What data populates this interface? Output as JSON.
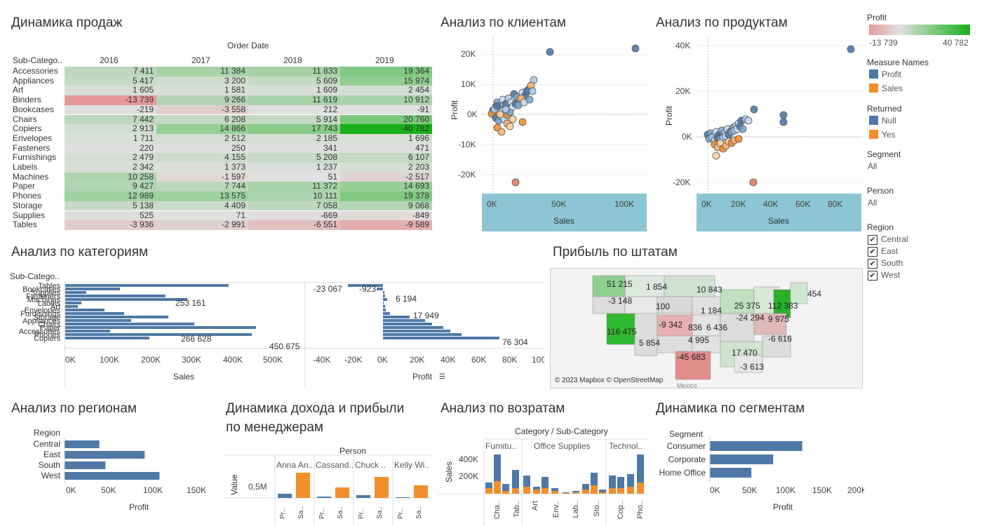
{
  "titles": {
    "sales_dynamics": "Динамика продаж",
    "clients": "Анализ по клиентам",
    "products": "Анализ по продуктам",
    "categories": "Анализ по категориям",
    "states": "Прибыль по штатам",
    "regions": "Анализ по регионам",
    "managers_l1": "Динамика дохода и прибыли",
    "managers_l2": "по менеджерам",
    "returns": "Анализ по возратам",
    "segments": "Динамика по сегментам"
  },
  "heatmap": {
    "order_date_label": "Order Date",
    "row_header": "Sub-Catego..",
    "years": [
      "2016",
      "2017",
      "2018",
      "2019"
    ],
    "rows": [
      {
        "label": "Accessories",
        "v": [
          "7 411",
          "11 384",
          "11 833",
          "19 364"
        ],
        "n": [
          7411,
          11384,
          11833,
          19364
        ]
      },
      {
        "label": "Appliances",
        "v": [
          "5 417",
          "3 200",
          "5 609",
          "15 974"
        ],
        "n": [
          5417,
          3200,
          5609,
          15974
        ]
      },
      {
        "label": "Art",
        "v": [
          "1 605",
          "1 581",
          "1 609",
          "2 454"
        ],
        "n": [
          1605,
          1581,
          1609,
          2454
        ]
      },
      {
        "label": "Binders",
        "v": [
          "-13 739",
          "9 266",
          "11 619",
          "10 912"
        ],
        "n": [
          -13739,
          9266,
          11619,
          10912
        ]
      },
      {
        "label": "Bookcases",
        "v": [
          "-219",
          "-3 558",
          "212",
          "-91"
        ],
        "n": [
          -219,
          -3558,
          212,
          -91
        ]
      },
      {
        "label": "Chairs",
        "v": [
          "7 442",
          "6 208",
          "5 914",
          "20 760"
        ],
        "n": [
          7442,
          6208,
          5914,
          20760
        ]
      },
      {
        "label": "Copiers",
        "v": [
          "2 913",
          "14 866",
          "17 743",
          "40 782"
        ],
        "n": [
          2913,
          14866,
          17743,
          40782
        ]
      },
      {
        "label": "Envelopes",
        "v": [
          "1 711",
          "2 512",
          "2 185",
          "1 696"
        ],
        "n": [
          1711,
          2512,
          2185,
          1696
        ]
      },
      {
        "label": "Fasteners",
        "v": [
          "220",
          "250",
          "341",
          "471"
        ],
        "n": [
          220,
          250,
          341,
          471
        ]
      },
      {
        "label": "Furnishings",
        "v": [
          "2 479",
          "4 155",
          "5 208",
          "6 107"
        ],
        "n": [
          2479,
          4155,
          5208,
          6107
        ]
      },
      {
        "label": "Labels",
        "v": [
          "2 342",
          "1 373",
          "1 237",
          "2 203"
        ],
        "n": [
          2342,
          1373,
          1237,
          2203
        ]
      },
      {
        "label": "Machines",
        "v": [
          "10 258",
          "-1 597",
          "51",
          "-2 517"
        ],
        "n": [
          10258,
          -1597,
          51,
          -2517
        ]
      },
      {
        "label": "Paper",
        "v": [
          "9 427",
          "7 744",
          "11 372",
          "14 693"
        ],
        "n": [
          9427,
          7744,
          11372,
          14693
        ]
      },
      {
        "label": "Phones",
        "v": [
          "12 989",
          "13 575",
          "10 111",
          "19 378"
        ],
        "n": [
          12989,
          13575,
          10111,
          19378
        ]
      },
      {
        "label": "Storage",
        "v": [
          "5 138",
          "4 409",
          "7 058",
          "9 068"
        ],
        "n": [
          5138,
          4409,
          7058,
          9068
        ]
      },
      {
        "label": "Supplies",
        "v": [
          "525",
          "71",
          "-669",
          "-849"
        ],
        "n": [
          525,
          71,
          -669,
          -849
        ]
      },
      {
        "label": "Tables",
        "v": [
          "-3 936",
          "-2 991",
          "-6 551",
          "-9 589"
        ],
        "n": [
          -3936,
          -2991,
          -6551,
          -9589
        ]
      }
    ]
  },
  "clients_chart": {
    "ylabel": "Profit",
    "xlabel": "Sales",
    "yticks": [
      "20K",
      "10K",
      "0K",
      "-10K",
      "-20K"
    ],
    "xticks": [
      "0K",
      "50K",
      "100K"
    ]
  },
  "products_chart": {
    "ylabel": "Profit",
    "xlabel": "Sales",
    "yticks": [
      "40K",
      "20K",
      "0K",
      "-20K"
    ],
    "xticks": [
      "0K",
      "20K",
      "40K",
      "60K",
      "80K"
    ]
  },
  "legend": {
    "profit_title": "Profit",
    "profit_min": "-13 739",
    "profit_max": "40 782",
    "measure_title": "Measure Names",
    "measure_items": [
      "Profit",
      "Sales"
    ],
    "returned_title": "Returned",
    "returned_items": [
      "Null",
      "Yes"
    ],
    "segment_title": "Segment",
    "segment_value": "All",
    "person_title": "Person",
    "person_value": "All",
    "region_title": "Region",
    "region_items": [
      "Central",
      "East",
      "South",
      "West"
    ],
    "colors": {
      "blue": "#4e79a7",
      "orange": "#f28e2b",
      "neg": "#e6a0a0",
      "pos": "#1fae1f"
    }
  },
  "categories_chart": {
    "row_header": "Sub-Catego..",
    "labels": [
      "Tables",
      "Bookcases",
      "Supplies",
      "Fasteners",
      "Machines",
      "Labels",
      "Art",
      "Envelopes",
      "Furnishings",
      "Storage",
      "Appliances",
      "Chairs",
      "Paper",
      "Accessories",
      "Phones",
      "Copiers"
    ],
    "sales_labels": [
      "253 161",
      "266 628",
      "450 675"
    ],
    "profit_labels": [
      "-23 067",
      "-923",
      "6 194",
      "17 949",
      "76 304"
    ],
    "sales_ticks": [
      "0K",
      "100K",
      "200K",
      "300K",
      "400K",
      "500K"
    ],
    "profit_ticks": [
      "-40K",
      "-20K",
      "0K",
      "20K",
      "40K",
      "60K",
      "80K",
      "100K"
    ],
    "sales_axis": "Sales",
    "profit_axis": "Profit"
  },
  "map": {
    "credit": "© 2023 Mapbox © OpenStreetMap",
    "mexico": "Mexico",
    "labels": [
      "51 215",
      "1 854",
      "10 843",
      "-3 148",
      "100",
      "1 184",
      "25 375",
      "112 383",
      "454",
      "-9 342",
      "836",
      "6 436",
      "-24 294",
      "9 975",
      "116 475",
      "5 854",
      "4 995",
      "-6 616",
      "-45 683",
      "17 470",
      "-3 613"
    ]
  },
  "regions_chart": {
    "header": "Region",
    "items": [
      "Central",
      "East",
      "South",
      "West"
    ],
    "values": [
      39706,
      91523,
      46749,
      108418
    ],
    "ticks": [
      "0K",
      "50K",
      "100K",
      "150K"
    ],
    "xlabel": "Profit"
  },
  "managers_chart": {
    "header": "Person",
    "persons": [
      "Anna An..",
      "Cassand..",
      "Chuck ..",
      "Kelly Wi.."
    ],
    "ylabel": "Value",
    "ytick": "0,5M",
    "bar_labels": [
      "Pr..",
      "Sa.."
    ]
  },
  "returns_chart": {
    "header": "Category / Sub-Category",
    "groups": [
      "Furnitu..",
      "Office Supplies",
      "Technol.."
    ],
    "ylabel": "Sales",
    "yticks": [
      "400K",
      "200K"
    ],
    "xlabels": [
      "Cha..",
      "Tab..",
      "Art",
      "Env..",
      "Lab..",
      "Sto..",
      "Cop..",
      "Pho.."
    ]
  },
  "segments_chart": {
    "header": "Segment",
    "items": [
      "Consumer",
      "Corporate",
      "Home Office"
    ],
    "values": [
      134119,
      91979,
      60299
    ],
    "ticks": [
      "0K",
      "50K",
      "100K",
      "150K",
      "200K"
    ],
    "xlabel": "Profit"
  }
}
